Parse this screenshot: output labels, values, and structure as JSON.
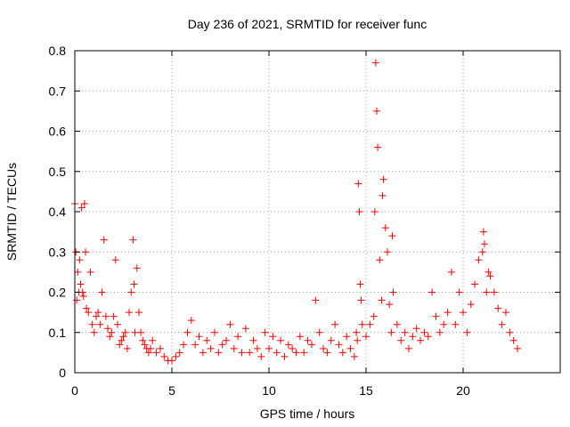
{
  "chart_data": {
    "type": "scatter",
    "title": "Day 236 of 2021, SRMTID for receiver func",
    "xlabel": "GPS time / hours",
    "ylabel": "SRMTID / TECUs",
    "xlim": [
      0,
      25
    ],
    "ylim": [
      0,
      0.8
    ],
    "x_ticks": [
      0,
      5,
      10,
      15,
      20
    ],
    "y_ticks": [
      0,
      0.1,
      0.2,
      0.3,
      0.4,
      0.5,
      0.6,
      0.7,
      0.8
    ],
    "x_tick_labels": [
      "0",
      "5",
      "10",
      "15",
      "20"
    ],
    "y_tick_labels": [
      "0",
      "0.1",
      "0.2",
      "0.3",
      "0.4",
      "0.5",
      "0.6",
      "0.7",
      "0.8"
    ],
    "grid": true,
    "marker": "+",
    "series_color": "#ff0000",
    "series": [
      {
        "name": "SRMTID",
        "x": [
          0.0,
          0.05,
          0.1,
          0.15,
          0.2,
          0.25,
          0.3,
          0.35,
          0.4,
          0.45,
          0.5,
          0.55,
          0.6,
          0.7,
          0.8,
          0.9,
          1.0,
          1.1,
          1.2,
          1.3,
          1.4,
          1.5,
          1.6,
          1.7,
          1.8,
          1.9,
          2.0,
          2.1,
          2.2,
          2.3,
          2.4,
          2.5,
          2.6,
          2.7,
          2.8,
          2.9,
          3.0,
          3.05,
          3.1,
          3.2,
          3.3,
          3.4,
          3.5,
          3.6,
          3.7,
          3.8,
          3.9,
          4.0,
          4.2,
          4.4,
          4.6,
          4.8,
          5.0,
          5.2,
          5.4,
          5.6,
          5.8,
          6.0,
          6.2,
          6.4,
          6.6,
          6.8,
          7.0,
          7.2,
          7.4,
          7.6,
          7.8,
          8.0,
          8.2,
          8.4,
          8.6,
          8.8,
          9.0,
          9.2,
          9.4,
          9.6,
          9.8,
          10.0,
          10.2,
          10.4,
          10.6,
          10.8,
          11.0,
          11.2,
          11.4,
          11.6,
          11.8,
          12.0,
          12.2,
          12.4,
          12.6,
          12.8,
          13.0,
          13.2,
          13.4,
          13.6,
          13.8,
          14.0,
          14.2,
          14.4,
          14.5,
          14.55,
          14.6,
          14.65,
          14.7,
          14.75,
          14.8,
          15.0,
          15.2,
          15.4,
          15.45,
          15.5,
          15.55,
          15.6,
          15.7,
          15.8,
          15.85,
          15.9,
          16.0,
          16.1,
          16.2,
          16.3,
          16.35,
          16.4,
          16.6,
          16.8,
          17.0,
          17.2,
          17.4,
          17.6,
          17.8,
          18.0,
          18.2,
          18.4,
          18.6,
          18.8,
          19.0,
          19.2,
          19.4,
          19.6,
          19.8,
          20.0,
          20.2,
          20.4,
          20.6,
          20.8,
          21.0,
          21.05,
          21.1,
          21.2,
          21.3,
          21.4,
          21.6,
          21.8,
          22.0,
          22.2,
          22.4,
          22.6,
          22.8
        ],
        "y": [
          0.42,
          0.3,
          0.18,
          0.25,
          0.2,
          0.28,
          0.22,
          0.41,
          0.2,
          0.19,
          0.42,
          0.3,
          0.16,
          0.15,
          0.25,
          0.12,
          0.1,
          0.14,
          0.15,
          0.12,
          0.2,
          0.33,
          0.14,
          0.11,
          0.09,
          0.1,
          0.14,
          0.28,
          0.12,
          0.07,
          0.08,
          0.09,
          0.1,
          0.06,
          0.15,
          0.2,
          0.33,
          0.22,
          0.1,
          0.26,
          0.15,
          0.1,
          0.08,
          0.07,
          0.06,
          0.05,
          0.06,
          0.08,
          0.05,
          0.06,
          0.04,
          0.03,
          0.03,
          0.04,
          0.05,
          0.07,
          0.1,
          0.13,
          0.07,
          0.09,
          0.05,
          0.08,
          0.06,
          0.1,
          0.05,
          0.07,
          0.08,
          0.12,
          0.06,
          0.09,
          0.05,
          0.11,
          0.05,
          0.08,
          0.06,
          0.04,
          0.1,
          0.06,
          0.09,
          0.05,
          0.08,
          0.04,
          0.07,
          0.06,
          0.05,
          0.09,
          0.05,
          0.08,
          0.07,
          0.18,
          0.1,
          0.06,
          0.05,
          0.08,
          0.12,
          0.07,
          0.05,
          0.09,
          0.06,
          0.04,
          0.1,
          0.08,
          0.47,
          0.4,
          0.22,
          0.18,
          0.12,
          0.09,
          0.12,
          0.14,
          0.4,
          0.77,
          0.65,
          0.56,
          0.28,
          0.18,
          0.44,
          0.48,
          0.36,
          0.3,
          0.17,
          0.1,
          0.34,
          0.2,
          0.12,
          0.08,
          0.1,
          0.06,
          0.09,
          0.11,
          0.08,
          0.1,
          0.09,
          0.2,
          0.14,
          0.1,
          0.12,
          0.15,
          0.25,
          0.12,
          0.2,
          0.15,
          0.1,
          0.17,
          0.22,
          0.28,
          0.3,
          0.35,
          0.32,
          0.2,
          0.25,
          0.24,
          0.2,
          0.16,
          0.12,
          0.15,
          0.1,
          0.08,
          0.06
        ]
      }
    ]
  }
}
